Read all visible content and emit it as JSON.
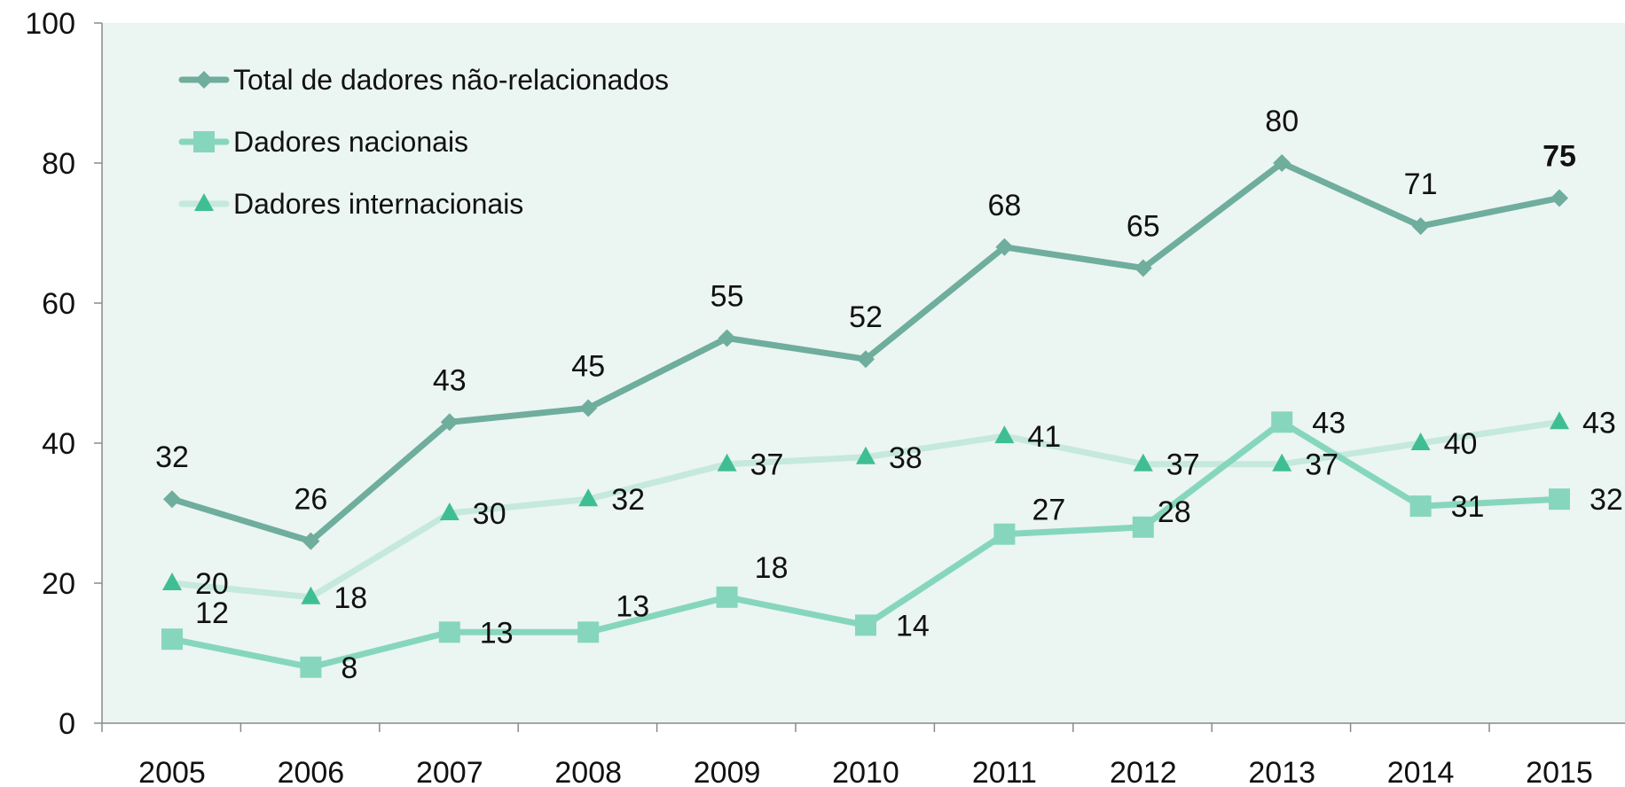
{
  "chart_data": {
    "type": "line",
    "title": "",
    "xlabel": "",
    "ylabel": "",
    "categories": [
      "2005",
      "2006",
      "2007",
      "2008",
      "2009",
      "2010",
      "2011",
      "2012",
      "2013",
      "2014",
      "2015"
    ],
    "ylim": [
      0,
      100
    ],
    "yticks": [
      0,
      20,
      40,
      60,
      80,
      100
    ],
    "grid": false,
    "legend_position": "top-left",
    "plot_background": "#ebf5f1",
    "series": [
      {
        "name": "Total de dadores não-relacionados",
        "marker": "diamond",
        "color": "#6fad9d",
        "values": [
          32,
          26,
          43,
          45,
          55,
          52,
          68,
          65,
          80,
          71,
          75
        ],
        "labels": [
          "32",
          "26",
          "43",
          "45",
          "55",
          "52",
          "68",
          "65",
          "80",
          "71",
          "75"
        ],
        "bold_last_label": true
      },
      {
        "name": "Dadores nacionais",
        "marker": "square",
        "color": "#86d6be",
        "values": [
          12,
          8,
          13,
          13,
          18,
          14,
          27,
          28,
          43,
          31,
          32
        ],
        "labels": [
          "12",
          "8",
          "13",
          "13",
          "18",
          "14",
          "27",
          "28",
          "43",
          "31",
          "32"
        ]
      },
      {
        "name": "Dadores internacionais",
        "marker": "triangle",
        "color": "#c5e9dc",
        "marker_color": "#3fbe94",
        "values": [
          20,
          18,
          30,
          32,
          37,
          38,
          41,
          37,
          37,
          40,
          43
        ],
        "labels": [
          "20",
          "18",
          "30",
          "32",
          "37",
          "38",
          "41",
          "37",
          "37",
          "40",
          "43"
        ]
      }
    ]
  }
}
